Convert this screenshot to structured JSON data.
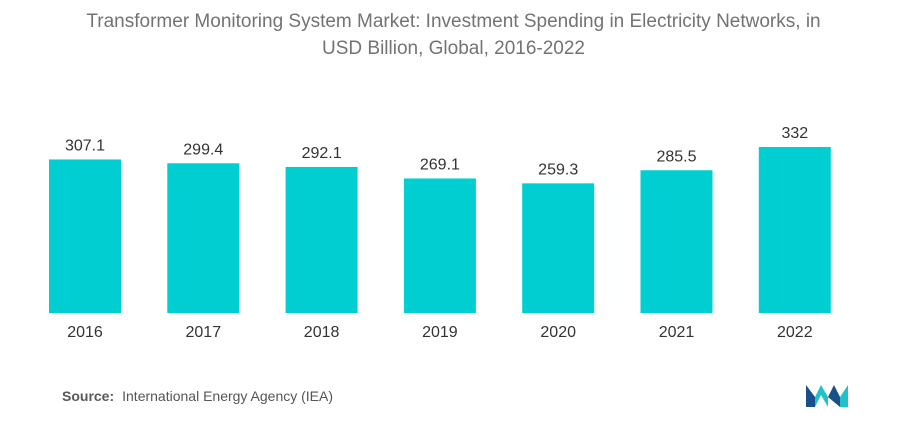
{
  "header": {
    "title_line1": "Transformer Monitoring System Market: Investment Spending in Electricity Networks, in",
    "title_line2": "USD Billion, Global, 2016-2022"
  },
  "chart_data": {
    "type": "bar",
    "title": "Transformer Monitoring System Market: Investment Spending in Electricity Networks, in USD Billion, Global, 2016-2022",
    "categories": [
      "2016",
      "2017",
      "2018",
      "2019",
      "2020",
      "2021",
      "2022"
    ],
    "values": [
      307.1,
      299.4,
      292.1,
      269.1,
      259.3,
      285.5,
      332
    ],
    "value_labels": [
      "307.1",
      "299.4",
      "292.1",
      "269.1",
      "259.3",
      "285.5",
      "332"
    ],
    "xlabel": "",
    "ylabel": "",
    "grid": false,
    "legend": "none",
    "bar_color": "#00CED1"
  },
  "footer": {
    "source_label": "Source:",
    "source_text": "International Energy Agency (IEA)"
  },
  "logo": {
    "icon": "mordor-intelligence-logo",
    "colors": [
      "#1B4F8A",
      "#1FC2C9"
    ]
  }
}
